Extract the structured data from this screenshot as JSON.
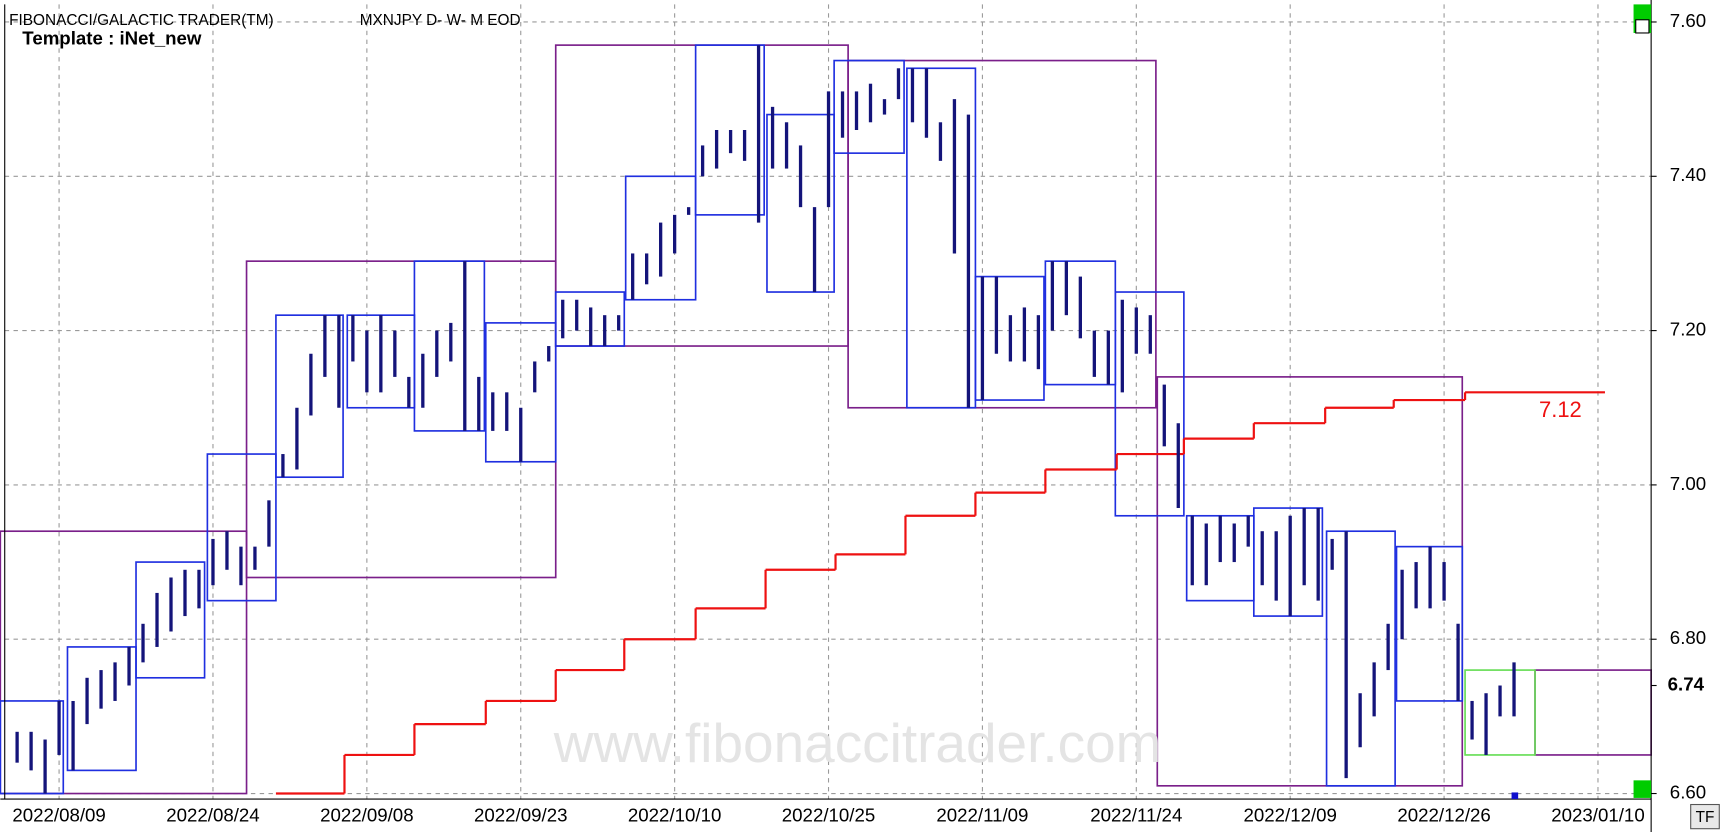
{
  "chart_data": {
    "type": "ohlc",
    "title": "FIBONACCI/GALACTIC TRADER(TM)",
    "subtitle": "MXNJPY D- W- M EOD",
    "template": "Template : iNet_new",
    "watermark": "www.fibonaccitrader.com",
    "button": "TF",
    "xlim": [
      -1.2,
      116.8
    ],
    "ylim": [
      6.6,
      7.6
    ],
    "yticks": [
      {
        "value": 7.6,
        "label": "7.60"
      },
      {
        "value": 7.4,
        "label": "7.40"
      },
      {
        "value": 7.2,
        "label": "7.20"
      },
      {
        "value": 7.0,
        "label": "7.00"
      },
      {
        "value": 6.8,
        "label": "6.80"
      },
      {
        "value": 6.6,
        "label": "6.60"
      }
    ],
    "xticks": [
      {
        "value": 3,
        "label": "2022/08/09"
      },
      {
        "value": 14,
        "label": "2022/08/24"
      },
      {
        "value": 25,
        "label": "2022/09/08"
      },
      {
        "value": 36,
        "label": "2022/09/23"
      },
      {
        "value": 47,
        "label": "2022/10/10"
      },
      {
        "value": 58,
        "label": "2022/10/25"
      },
      {
        "value": 69,
        "label": "2022/11/09"
      },
      {
        "value": 80,
        "label": "2022/11/24"
      },
      {
        "value": 91,
        "label": "2022/12/09"
      },
      {
        "value": 102,
        "label": "2022/12/26"
      },
      {
        "value": 113,
        "label": "2023/01/10"
      }
    ],
    "grid": true,
    "last_price": {
      "value": 6.74,
      "label": "6.74"
    },
    "bars": {
      "color": "#14147a",
      "high": [
        6.68,
        6.68,
        6.67,
        6.72,
        6.72,
        6.75,
        6.76,
        6.77,
        6.79,
        6.82,
        6.86,
        6.88,
        6.89,
        6.89,
        6.93,
        6.94,
        6.92,
        6.92,
        6.98,
        7.04,
        7.1,
        7.17,
        7.22,
        7.22,
        7.22,
        7.2,
        7.22,
        7.2,
        7.14,
        7.17,
        7.2,
        7.21,
        7.29,
        7.14,
        7.12,
        7.12,
        7.1,
        7.16,
        7.18,
        7.24,
        7.24,
        7.23,
        7.22,
        7.22,
        7.3,
        7.3,
        7.34,
        7.35,
        7.36,
        7.44,
        7.46,
        7.46,
        7.46,
        7.57,
        7.49,
        7.47,
        7.44,
        7.36,
        7.51,
        7.51,
        7.51,
        7.52,
        7.5,
        7.54,
        7.54,
        7.54,
        7.47,
        7.5,
        7.48,
        7.27,
        7.27,
        7.22,
        7.23,
        7.22,
        7.29,
        7.29,
        7.27,
        7.2,
        7.2,
        7.24,
        7.23,
        7.22,
        7.13,
        7.08,
        6.96,
        6.95,
        6.96,
        6.95,
        6.96,
        6.94,
        6.94,
        6.96,
        6.97,
        6.97,
        6.93,
        6.94,
        6.73,
        6.77,
        6.82,
        6.89,
        6.9,
        6.92,
        6.9,
        6.82,
        6.72,
        6.73,
        6.74,
        6.77
      ],
      "low": [
        6.64,
        6.63,
        6.6,
        6.65,
        6.63,
        6.69,
        6.71,
        6.72,
        6.74,
        6.77,
        6.79,
        6.81,
        6.83,
        6.84,
        6.87,
        6.89,
        6.87,
        6.89,
        6.92,
        7.01,
        7.02,
        7.09,
        7.14,
        7.1,
        7.16,
        7.12,
        7.12,
        7.14,
        7.1,
        7.1,
        7.14,
        7.16,
        7.07,
        7.07,
        7.07,
        7.07,
        7.03,
        7.12,
        7.16,
        7.19,
        7.2,
        7.18,
        7.18,
        7.2,
        7.24,
        7.26,
        7.27,
        7.3,
        7.35,
        7.4,
        7.41,
        7.43,
        7.42,
        7.34,
        7.41,
        7.41,
        7.36,
        7.25,
        7.36,
        7.45,
        7.46,
        7.47,
        7.48,
        7.5,
        7.47,
        7.45,
        7.42,
        7.3,
        7.1,
        7.11,
        7.17,
        7.16,
        7.16,
        7.15,
        7.2,
        7.22,
        7.19,
        7.14,
        7.13,
        7.12,
        7.17,
        7.17,
        7.05,
        6.97,
        6.87,
        6.87,
        6.9,
        6.9,
        6.92,
        6.87,
        6.85,
        6.83,
        6.87,
        6.85,
        6.89,
        6.62,
        6.66,
        6.7,
        6.76,
        6.8,
        6.84,
        6.84,
        6.85,
        6.72,
        6.67,
        6.65,
        6.7,
        6.7
      ]
    },
    "weekly_boxes": {
      "color": "#1f2fe0",
      "boxes": [
        {
          "x": [
            -1.2,
            3.3
          ],
          "high": 6.72,
          "low": 6.6
        },
        {
          "x": [
            3.6,
            8.5
          ],
          "high": 6.79,
          "low": 6.63
        },
        {
          "x": [
            8.5,
            13.4
          ],
          "high": 6.9,
          "low": 6.75
        },
        {
          "x": [
            13.6,
            18.5
          ],
          "high": 7.04,
          "low": 6.85
        },
        {
          "x": [
            18.5,
            23.3
          ],
          "high": 7.22,
          "low": 7.01
        },
        {
          "x": [
            23.6,
            28.4
          ],
          "high": 7.22,
          "low": 7.1
        },
        {
          "x": [
            28.4,
            33.4
          ],
          "high": 7.29,
          "low": 7.07
        },
        {
          "x": [
            33.5,
            38.5
          ],
          "high": 7.21,
          "low": 7.03
        },
        {
          "x": [
            38.5,
            43.4
          ],
          "high": 7.25,
          "low": 7.18
        },
        {
          "x": [
            43.5,
            48.5
          ],
          "high": 7.4,
          "low": 7.24
        },
        {
          "x": [
            48.5,
            53.4
          ],
          "high": 7.57,
          "low": 7.35
        },
        {
          "x": [
            53.6,
            58.4
          ],
          "high": 7.48,
          "low": 7.25
        },
        {
          "x": [
            58.4,
            63.4
          ],
          "high": 7.55,
          "low": 7.43
        },
        {
          "x": [
            63.6,
            68.5
          ],
          "high": 7.54,
          "low": 7.1
        },
        {
          "x": [
            68.5,
            73.4
          ],
          "high": 7.27,
          "low": 7.11
        },
        {
          "x": [
            73.5,
            78.5
          ],
          "high": 7.29,
          "low": 7.13
        },
        {
          "x": [
            78.5,
            83.4
          ],
          "high": 7.25,
          "low": 6.96
        },
        {
          "x": [
            83.6,
            88.4
          ],
          "high": 6.96,
          "low": 6.85
        },
        {
          "x": [
            88.4,
            93.3
          ],
          "high": 6.97,
          "low": 6.83
        },
        {
          "x": [
            93.6,
            98.5
          ],
          "high": 6.94,
          "low": 6.61
        },
        {
          "x": [
            98.6,
            103.3
          ],
          "high": 6.92,
          "low": 6.72
        },
        {
          "x": [
            103.5,
            108.5
          ],
          "high": 6.76,
          "low": 6.65,
          "color": "#66dd55"
        }
      ]
    },
    "monthly_boxes": {
      "color": "#7a1f8a",
      "boxes": [
        {
          "x": [
            -1.2,
            16.4
          ],
          "high": 6.94,
          "low": 6.6
        },
        {
          "x": [
            16.4,
            38.5
          ],
          "high": 7.29,
          "low": 6.88
        },
        {
          "x": [
            38.5,
            59.4
          ],
          "high": 7.57,
          "low": 7.18
        },
        {
          "x": [
            59.4,
            81.4
          ],
          "high": 7.55,
          "low": 7.1
        },
        {
          "x": [
            81.5,
            103.3
          ],
          "high": 7.14,
          "low": 6.61
        },
        {
          "x": [
            108.5,
            116.8
          ],
          "high": 6.76,
          "low": 6.65
        }
      ]
    },
    "step_line": {
      "color": "#ee1111",
      "label": "7.12",
      "x": [
        18.5,
        23.4,
        28.4,
        33.5,
        38.5,
        43.4,
        48.5,
        53.5,
        58.5,
        63.5,
        68.5,
        73.5,
        78.6,
        83.4,
        88.4,
        93.5,
        98.4,
        103.5,
        113.5
      ],
      "values": [
        6.6,
        6.65,
        6.69,
        6.72,
        6.76,
        6.8,
        6.84,
        6.89,
        6.91,
        6.96,
        6.99,
        7.02,
        7.04,
        7.06,
        7.08,
        7.1,
        7.11,
        7.12,
        7.12
      ]
    }
  }
}
